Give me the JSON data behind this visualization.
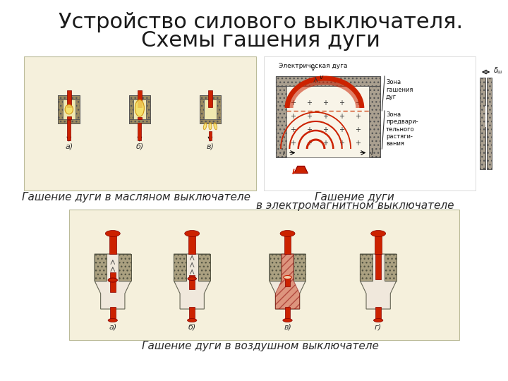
{
  "title_line1": "Устройство силового выключателя.",
  "title_line2": "Схемы гашения дуги",
  "subtitle_bottom": "Гашение дуги в воздушном выключателе",
  "caption_left": "Гашение дуги в масляном выключателе",
  "caption_right_line1": "Гашение дуги",
  "caption_right_line2": "в электромагнитном выключателе",
  "bg_color": "#ffffff",
  "title_color": "#1a1a1a",
  "caption_color": "#2a2a2a",
  "title_fontsize": 22,
  "caption_fontsize": 11,
  "panel_bg_top_left": "#f5f0dc",
  "panel_bg_top_right": "#ffffff",
  "panel_bg_bottom": "#f5f0dc"
}
